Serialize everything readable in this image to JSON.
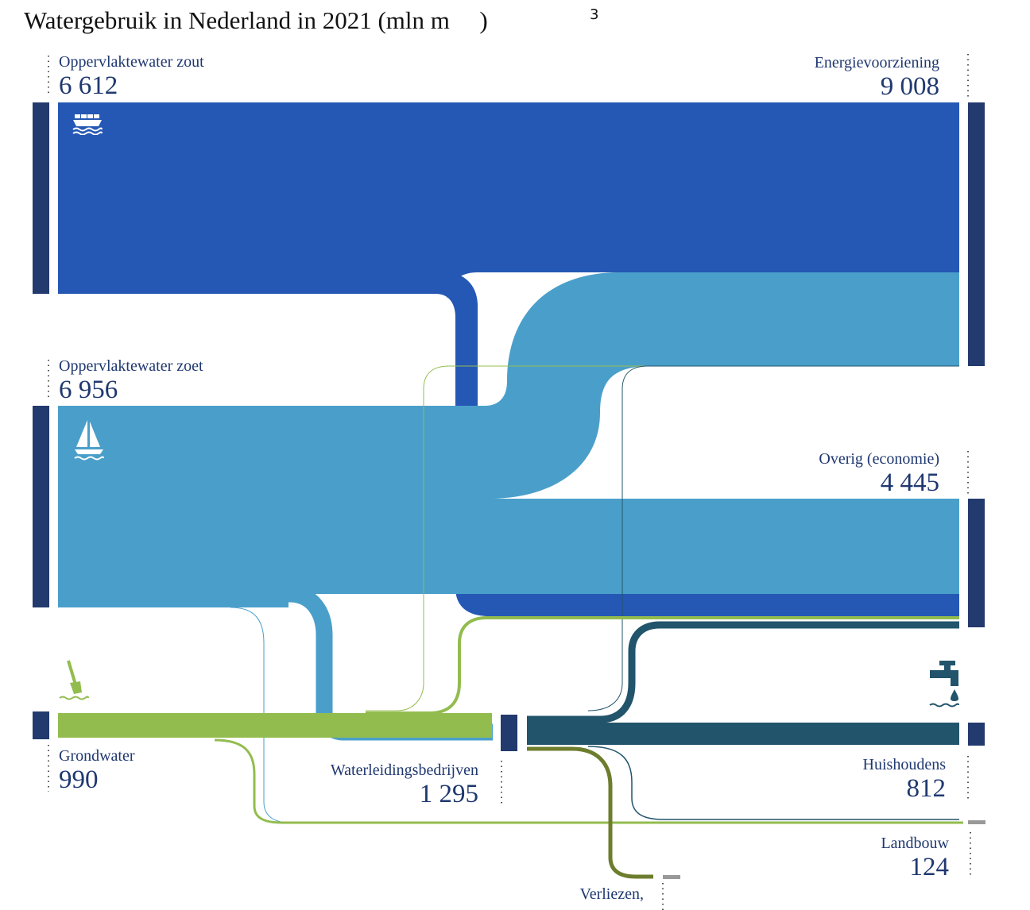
{
  "title": "Watergebruik in Nederland in 2021 (mln m",
  "title_close": ")",
  "title_superscript": "3",
  "colors": {
    "node": "#233a6e",
    "salt": "#2558b4",
    "fresh": "#4a9fca",
    "ground": "#93bc4f",
    "supply": "#22546b",
    "losses": "#6d7d2e",
    "agri": "#999999"
  },
  "nodes": {
    "salt_surface": {
      "label": "Oppervlaktewater zout",
      "value": "6 612",
      "icon": "cargo-ship-icon"
    },
    "fresh_surface": {
      "label": "Oppervlaktewater zoet",
      "value": "6 956",
      "icon": "sailboat-icon"
    },
    "groundwater": {
      "label": "Grondwater",
      "value": "990",
      "icon": "shovel-icon"
    },
    "water_companies": {
      "label": "Waterleidingsbedrijven",
      "value": "1 295"
    },
    "energy": {
      "label": "Energievoorziening",
      "value": "9 008"
    },
    "other_economy": {
      "label": "Overig (economie)",
      "value": "4 445"
    },
    "households": {
      "label": "Huishoudens",
      "value": "812",
      "icon": "tap-icon"
    },
    "agriculture": {
      "label": "Landbouw",
      "value": "124"
    },
    "losses": {
      "label": "Verliezen,",
      "value": ""
    }
  }
}
